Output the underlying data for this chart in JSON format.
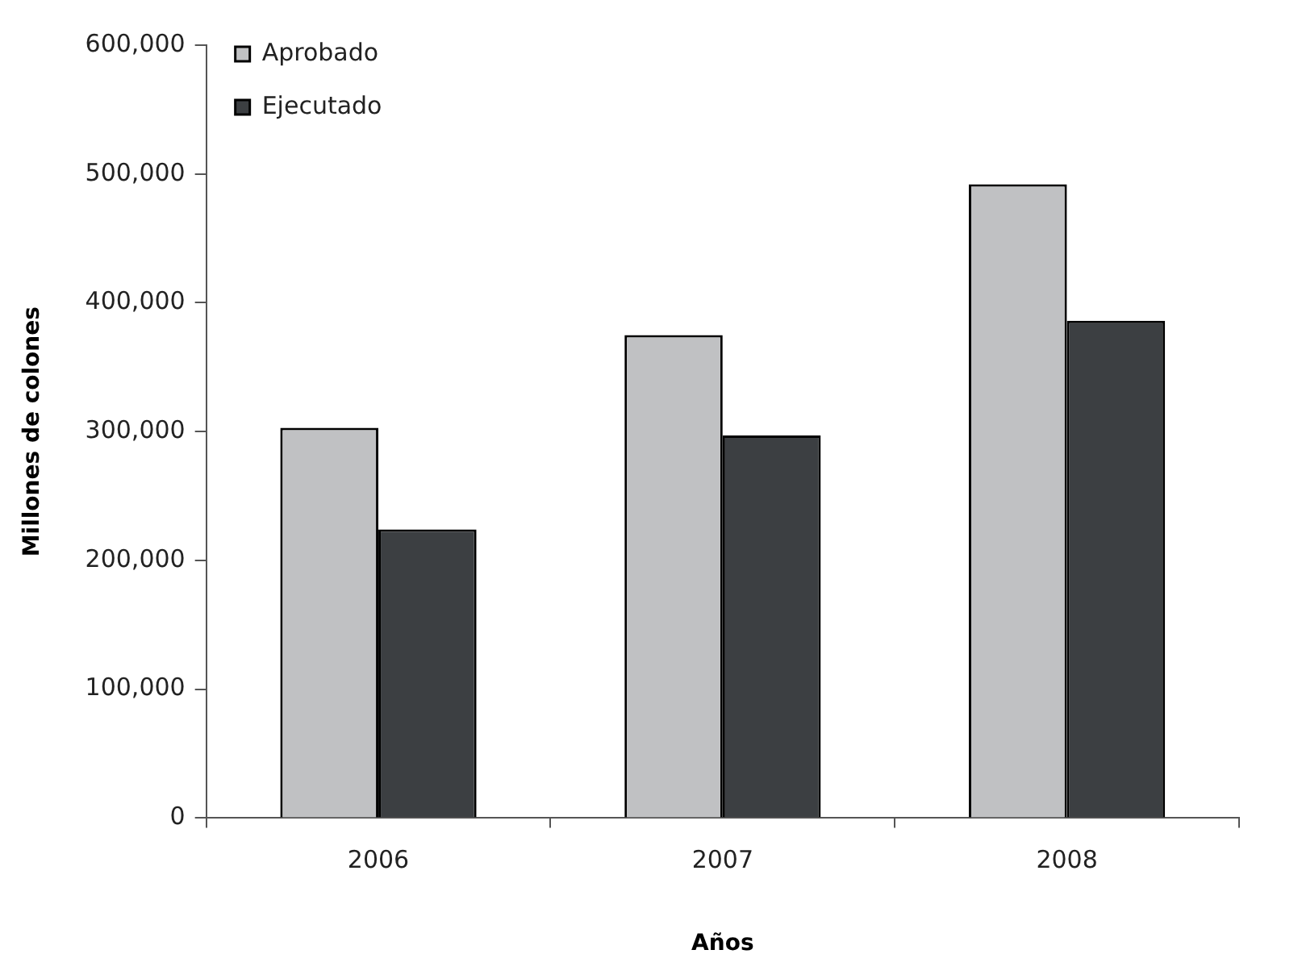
{
  "chart_data": {
    "type": "bar",
    "xlabel": "Años",
    "ylabel": "Millones de colones",
    "categories": [
      "2006",
      "2007",
      "2008"
    ],
    "series": [
      {
        "name": "Aprobado",
        "color": "#c0c1c3",
        "values": [
          303000,
          375000,
          492000
        ]
      },
      {
        "name": "Ejecutado",
        "color": "#3c3f42",
        "values": [
          224000,
          297000,
          386000
        ]
      }
    ],
    "ylim": [
      0,
      600000
    ],
    "yticks": [
      {
        "value": 0,
        "label": "0"
      },
      {
        "value": 100000,
        "label": "100,000"
      },
      {
        "value": 200000,
        "label": "200,000"
      },
      {
        "value": 300000,
        "label": "300,000"
      },
      {
        "value": 400000,
        "label": "400,000"
      },
      {
        "value": 500000,
        "label": "500,000"
      },
      {
        "value": 600000,
        "label": "600,000"
      }
    ],
    "grid": false,
    "legend": "top left"
  }
}
